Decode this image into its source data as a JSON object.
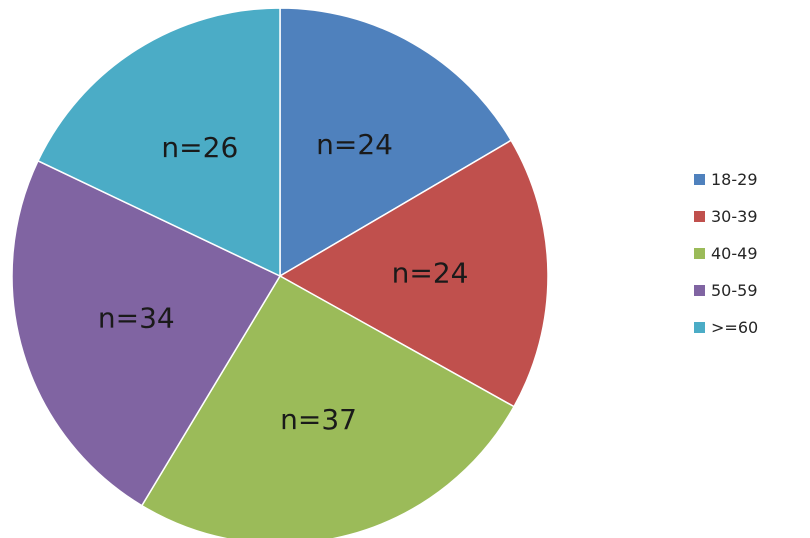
{
  "chart_data": {
    "type": "pie",
    "categories": [
      "18-29",
      "30-39",
      "40-49",
      "50-59",
      ">=60"
    ],
    "values": [
      24,
      24,
      37,
      34,
      26
    ],
    "data_labels": [
      "n=24",
      "n=24",
      "n=37",
      "n=34",
      "n=26"
    ],
    "colors": [
      "#4f81bd",
      "#c0504d",
      "#9bbb59",
      "#8064a2",
      "#4bacc6"
    ],
    "start_angle": "12 o'clock",
    "direction": "clockwise",
    "legend_position": "right"
  },
  "legend": {
    "items": [
      {
        "label": "18-29",
        "color": "#4f81bd"
      },
      {
        "label": "30-39",
        "color": "#c0504d"
      },
      {
        "label": "40-49",
        "color": "#9bbb59"
      },
      {
        "label": "50-59",
        "color": "#8064a2"
      },
      {
        "label": ">=60",
        "color": "#4bacc6"
      }
    ]
  }
}
